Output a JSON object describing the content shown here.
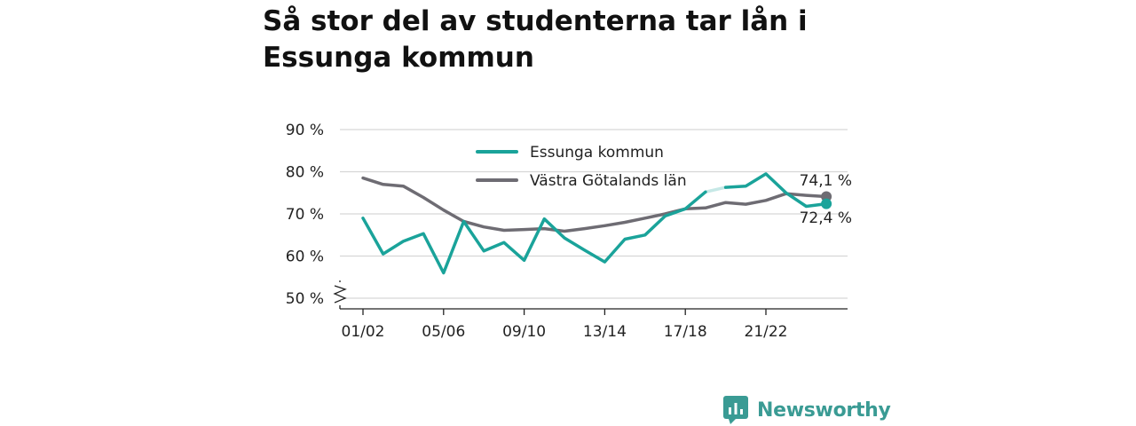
{
  "title": "Så stor del av studenterna tar lån i Essunga kommun",
  "brand": {
    "name": "Newsworthy",
    "color": "#3a9b94",
    "icon": "newsworthy-logo-icon"
  },
  "colors": {
    "essunga": "#1aa39a",
    "vgl": "#6e6c73",
    "grid": "#d6d6d6",
    "axis": "#222222"
  },
  "chart_data": {
    "type": "line",
    "title": "Så stor del av studenterna tar lån i Essunga kommun",
    "xlabel": "",
    "ylabel": "",
    "ylim": [
      50,
      90
    ],
    "y_ticks": [
      {
        "value": 50,
        "label": "50 %"
      },
      {
        "value": 60,
        "label": "60 %"
      },
      {
        "value": 70,
        "label": "70 %"
      },
      {
        "value": 80,
        "label": "80 %"
      },
      {
        "value": 90,
        "label": "90 %"
      }
    ],
    "y_axis_break": true,
    "x_tick_labels": [
      {
        "index": 0,
        "label": "01/02"
      },
      {
        "index": 4,
        "label": "05/06"
      },
      {
        "index": 8,
        "label": "09/10"
      },
      {
        "index": 12,
        "label": "13/14"
      },
      {
        "index": 16,
        "label": "17/18"
      },
      {
        "index": 20,
        "label": "21/22"
      }
    ],
    "x": [
      "01/02",
      "02/03",
      "03/04",
      "04/05",
      "05/06",
      "06/07",
      "07/08",
      "08/09",
      "09/10",
      "10/11",
      "11/12",
      "12/13",
      "13/14",
      "14/15",
      "15/16",
      "16/17",
      "17/18",
      "18/19",
      "19/20",
      "20/21",
      "21/22",
      "22/23",
      "23/24",
      "24/25"
    ],
    "legend_position": "top-center",
    "grid": true,
    "series": [
      {
        "name": "Essunga kommun",
        "color": "#1aa39a",
        "values": [
          69.0,
          60.5,
          63.5,
          65.3,
          56.0,
          68.2,
          61.2,
          63.2,
          59.0,
          68.8,
          64.3,
          61.4,
          58.6,
          64.0,
          65.0,
          69.5,
          71.2,
          75.2,
          76.3,
          76.6,
          79.5,
          75.0,
          71.8,
          72.4
        ],
        "missing_segments": [
          [
            17,
            18
          ]
        ],
        "end_label": "72,4 %"
      },
      {
        "name": "Västra Götalands län",
        "color": "#6e6c73",
        "values": [
          78.5,
          77.0,
          76.6,
          73.9,
          70.9,
          68.2,
          66.9,
          66.1,
          66.3,
          66.5,
          65.9,
          66.5,
          67.2,
          68.0,
          69.0,
          70.0,
          71.2,
          71.4,
          72.7,
          72.3,
          73.2,
          74.8,
          74.4,
          74.1
        ],
        "end_label": "74,1 %"
      }
    ]
  }
}
